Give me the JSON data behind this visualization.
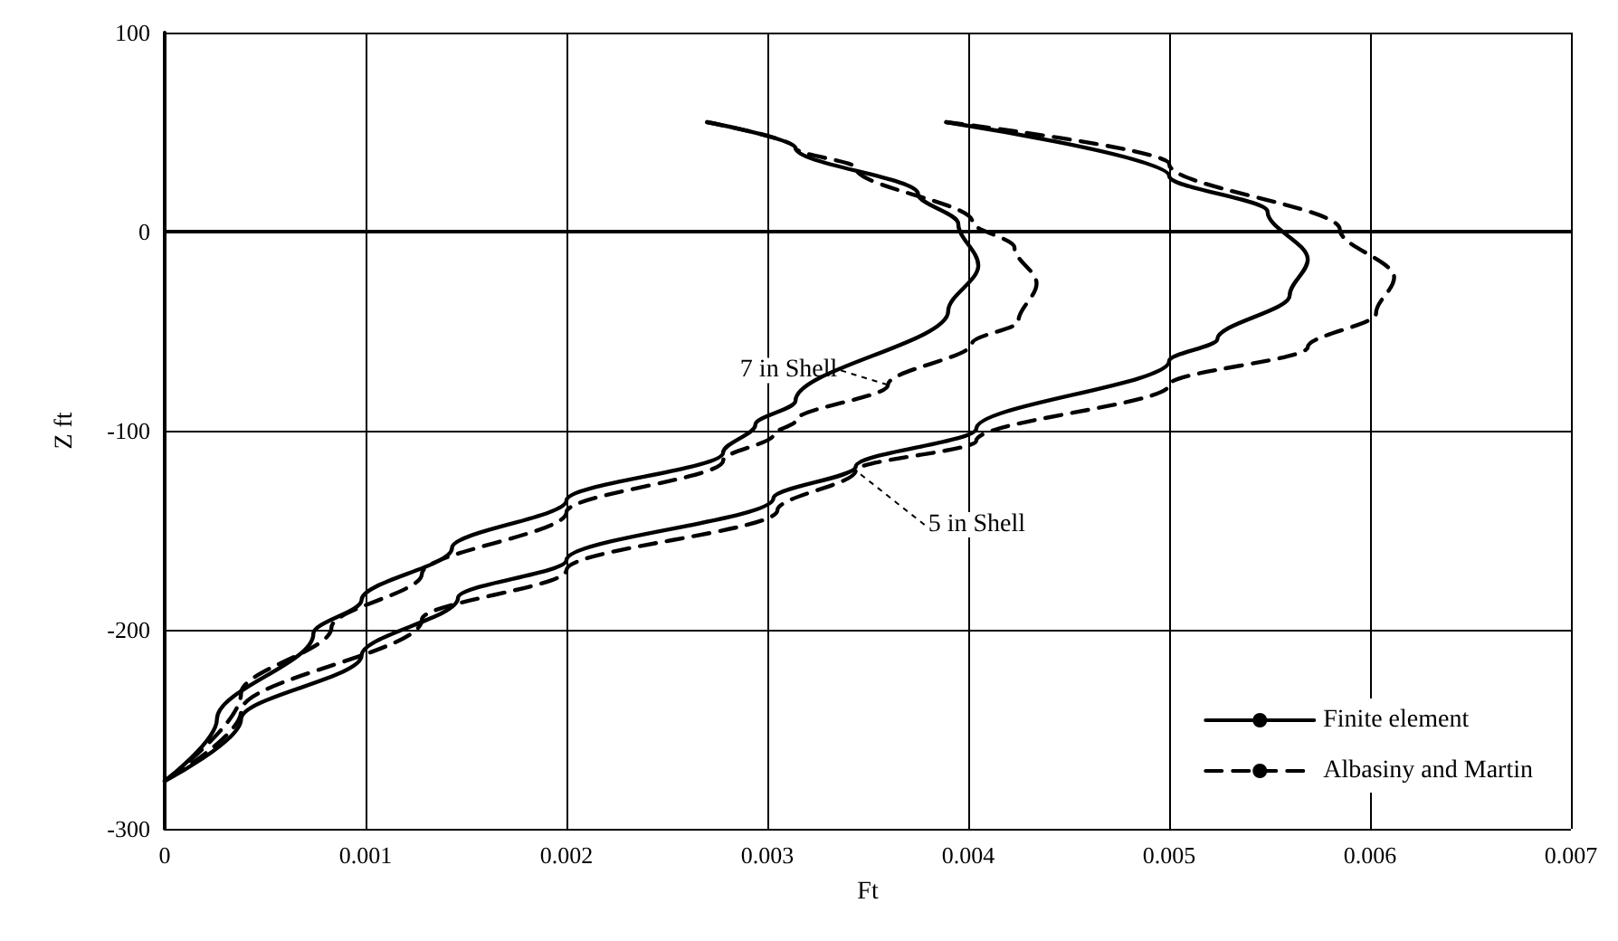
{
  "chart_data": {
    "type": "line",
    "xlabel": "Ft",
    "ylabel": "Z ft",
    "xlim": [
      0,
      0.007
    ],
    "ylim": [
      -300,
      100
    ],
    "xticks": [
      0,
      0.001,
      0.002,
      0.003,
      0.004,
      0.005,
      0.006,
      0.007
    ],
    "yticks": [
      -300,
      -200,
      -100,
      0,
      100
    ],
    "grid": true,
    "legend": "bottom right",
    "marker": "none",
    "series": [
      {
        "name": "Finite element",
        "color": "#000000",
        "line_style": "solid",
        "x": [
          0.0027,
          0.00314,
          0.00375,
          0.00395,
          0.00405,
          0.0039,
          0.00314,
          0.00294,
          0.00278,
          0.002,
          0.00143,
          0.00098,
          0.00074,
          0.00026,
          0
        ],
        "values": [
          55,
          42,
          19,
          4,
          -17,
          -40,
          -85,
          -97,
          -111,
          -135,
          -159,
          -185,
          -202,
          -245,
          -276
        ]
      },
      {
        "name": "Albasiny and Martin",
        "color": "#000000",
        "line_style": "dashed",
        "x": [
          0.0027,
          0.00314,
          0.00344,
          0.00402,
          0.00423,
          0.00434,
          0.00425,
          0.00402,
          0.0036,
          0.00314,
          0.00303,
          0.00278,
          0.002,
          0.00128,
          0.00083,
          0.00038,
          0
        ],
        "values": [
          55,
          42,
          32,
          5,
          -8,
          -26,
          -45,
          -56,
          -77,
          -95,
          -102,
          -115,
          -141,
          -172,
          -199,
          -232,
          -276
        ]
      },
      {
        "color": "#000000",
        "line_style": "solid",
        "x": [
          0.00389,
          0.005,
          0.00549,
          0.00569,
          0.0056,
          0.00524,
          0.005,
          0.00404,
          0.00344,
          0.00303,
          0.002,
          0.00146,
          0.00098,
          0.00038,
          0
        ],
        "values": [
          55,
          28,
          10,
          -14,
          -32,
          -54,
          -65,
          -99,
          -118,
          -134,
          -165,
          -184,
          -213,
          -245,
          -276
        ]
      },
      {
        "color": "#000000",
        "line_style": "dashed",
        "x": [
          0.00389,
          0.005,
          0.00585,
          0.00612,
          0.00603,
          0.00569,
          0.005,
          0.00404,
          0.00344,
          0.00305,
          0.002,
          0.00128,
          0.00038,
          0
        ],
        "values": [
          55,
          34,
          1,
          -23,
          -41,
          -58,
          -77,
          -105,
          -120,
          -140,
          -170,
          -195,
          -241,
          -276
        ]
      }
    ],
    "annotations": [
      {
        "text": "7 in Shell",
        "x": 0.0036,
        "y": -77
      },
      {
        "text": "5 in Shell",
        "x": 0.00344,
        "y": -120
      }
    ]
  }
}
